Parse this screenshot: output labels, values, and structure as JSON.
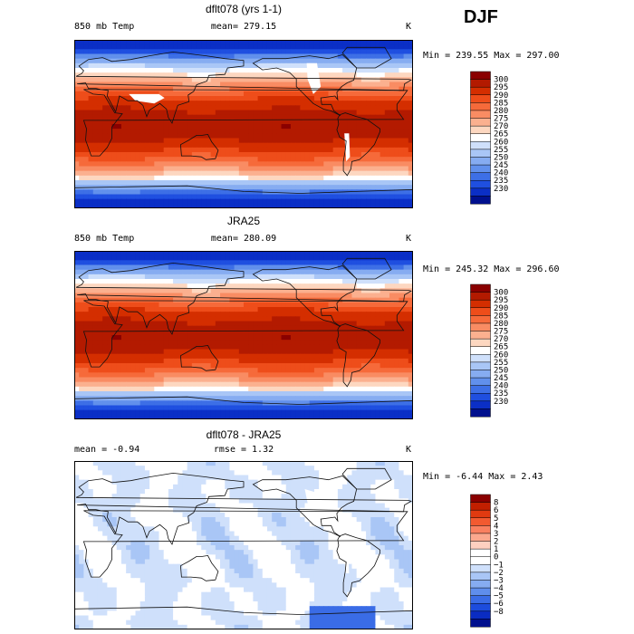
{
  "season": "DJF",
  "chart_data": [
    {
      "type": "heatmap",
      "title": "dflt078 (yrs 1-1)",
      "variable": "850 mb Temp",
      "units": "K",
      "stat_left": "",
      "stat_center": "mean= 279.15",
      "minmax": "Min = 239.55 Max = 297.00",
      "min": 239.55,
      "max": 297.0,
      "mean": 279.15,
      "colorbar": {
        "levels": [
          "300",
          "295",
          "290",
          "285",
          "280",
          "275",
          "270",
          "265",
          "260",
          "255",
          "250",
          "245",
          "240",
          "235",
          "230"
        ],
        "colors": [
          "#8a0000",
          "#b31a00",
          "#d42e00",
          "#ee4d1a",
          "#f66a3a",
          "#f98c63",
          "#fbb08f",
          "#fdd7c0",
          "#ffffff",
          "#cfe0fb",
          "#a9c6f6",
          "#86acf1",
          "#6190ec",
          "#3d6fe6",
          "#1f4fe0",
          "#0b2fc6",
          "#00108e"
        ]
      },
      "field": "warm",
      "has_missing": true
    },
    {
      "type": "heatmap",
      "title": "JRA25",
      "variable": "850 mb Temp",
      "units": "K",
      "stat_left": "",
      "stat_center": "mean= 280.09",
      "minmax": "Min = 245.32 Max = 296.60",
      "min": 245.32,
      "max": 296.6,
      "mean": 280.09,
      "colorbar": {
        "levels": [
          "300",
          "295",
          "290",
          "285",
          "280",
          "275",
          "270",
          "265",
          "260",
          "255",
          "250",
          "245",
          "240",
          "235",
          "230"
        ],
        "colors": [
          "#8a0000",
          "#b31a00",
          "#d42e00",
          "#ee4d1a",
          "#f66a3a",
          "#f98c63",
          "#fbb08f",
          "#fdd7c0",
          "#ffffff",
          "#cfe0fb",
          "#a9c6f6",
          "#86acf1",
          "#6190ec",
          "#3d6fe6",
          "#1f4fe0",
          "#0b2fc6",
          "#00108e"
        ]
      },
      "field": "warm",
      "has_missing": false
    },
    {
      "type": "heatmap",
      "title": "dflt078 - JRA25",
      "variable": "",
      "units": "K",
      "stat_left": "mean =   -0.94",
      "stat_center": "rmse =    1.32",
      "minmax": "Min =  -6.44 Max =   2.43",
      "min": -6.44,
      "max": 2.43,
      "mean": -0.94,
      "rmse": 1.32,
      "colorbar": {
        "levels": [
          "8",
          "6",
          "5",
          "4",
          "3",
          "2",
          "1",
          "0",
          "−1",
          "−2",
          "−3",
          "−4",
          "−5",
          "−6",
          "−8"
        ],
        "colors": [
          "#8a0000",
          "#c21f00",
          "#e03a10",
          "#f25a30",
          "#f98060",
          "#fba88e",
          "#fdd0c0",
          "#ffffff",
          "#ffffff",
          "#cfe0fb",
          "#a9c6f6",
          "#86acf1",
          "#5f8eec",
          "#3a6ce6",
          "#1c4cdd",
          "#0a2cc2",
          "#00108e"
        ]
      },
      "field": "diff",
      "has_missing": true
    }
  ]
}
